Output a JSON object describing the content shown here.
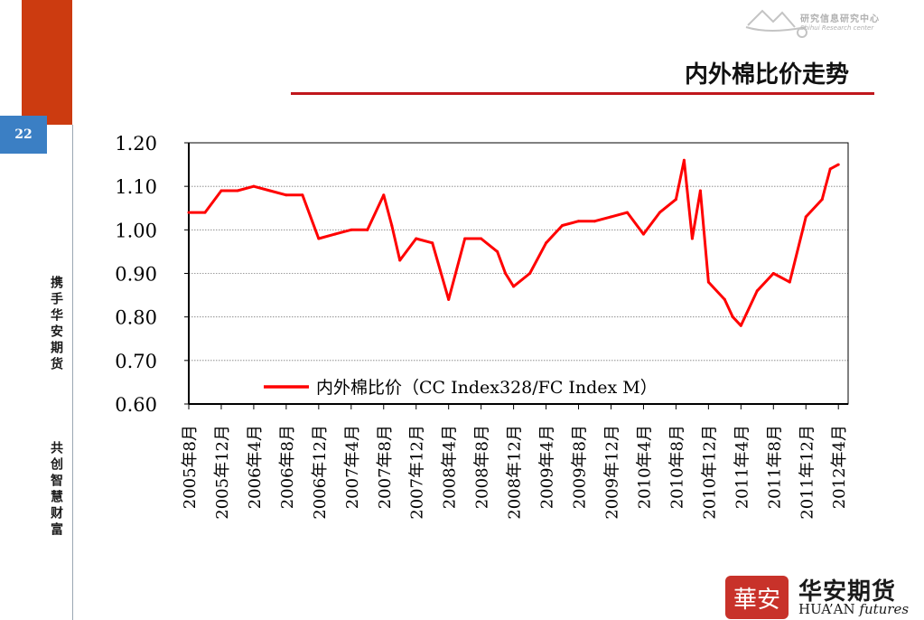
{
  "slide": {
    "page_number": "22",
    "title": "内外棉比价走势",
    "side_text_1": "携手华安期货",
    "side_text_2": "共创智慧财富"
  },
  "brand": {
    "top_logo_cn": "研究信息研究中心",
    "top_logo_en": "Shihui Research center",
    "bottom_seal_char": "華安",
    "bottom_logo_cn": "华安期货",
    "bottom_logo_en_main": "HUA’AN",
    "bottom_logo_en_script": "futures"
  },
  "colors": {
    "series": "#ff0000",
    "accent_red": "#c0161c",
    "badge_blue": "#3b7fc4",
    "side_red": "#cc3b10"
  },
  "chart_data": {
    "type": "line",
    "title": "",
    "xlabel": "",
    "ylabel": "",
    "ylim": [
      0.6,
      1.2
    ],
    "yticks": [
      "1.20",
      "1.10",
      "1.00",
      "0.90",
      "0.80",
      "0.70",
      "0.60"
    ],
    "xticks": [
      "2005年8月",
      "2005年12月",
      "2006年4月",
      "2006年8月",
      "2006年12月",
      "2007年4月",
      "2007年8月",
      "2007年12月",
      "2008年4月",
      "2008年8月",
      "2008年12月",
      "2009年4月",
      "2009年8月",
      "2009年12月",
      "2010年4月",
      "2010年8月",
      "2010年12月",
      "2011年4月",
      "2011年8月",
      "2011年12月",
      "2012年4月"
    ],
    "grid": true,
    "legend_position": "inside-bottom",
    "series": [
      {
        "name": "内外棉比价（CC Index328/FC Index M）",
        "x": [
          "2005年8月",
          "2005年10月",
          "2005年12月",
          "2006年2月",
          "2006年4月",
          "2006年6月",
          "2006年8月",
          "2006年10月",
          "2006年12月",
          "2007年2月",
          "2007年4月",
          "2007年6月",
          "2007年8月",
          "2007年9月",
          "2007年10月",
          "2007年12月",
          "2008年2月",
          "2008年4月",
          "2008年6月",
          "2008年8月",
          "2008年10月",
          "2008年11月",
          "2008年12月",
          "2009年2月",
          "2009年4月",
          "2009年6月",
          "2009年8月",
          "2009年10月",
          "2009年12月",
          "2010年2月",
          "2010年4月",
          "2010年6月",
          "2010年8月",
          "2010年9月",
          "2010年10月",
          "2010年11月",
          "2010年12月",
          "2011年2月",
          "2011年3月",
          "2011年4月",
          "2011年6月",
          "2011年8月",
          "2011年10月",
          "2011年12月",
          "2012年2月",
          "2012年3月",
          "2012年4月"
        ],
        "values": [
          1.04,
          1.04,
          1.09,
          1.09,
          1.1,
          1.09,
          1.08,
          1.08,
          0.98,
          0.99,
          1.0,
          1.0,
          1.08,
          1.01,
          0.93,
          0.98,
          0.97,
          0.84,
          0.98,
          0.98,
          0.95,
          0.9,
          0.87,
          0.9,
          0.97,
          1.01,
          1.02,
          1.02,
          1.03,
          1.04,
          0.99,
          1.04,
          1.07,
          1.16,
          0.98,
          1.09,
          0.88,
          0.84,
          0.8,
          0.78,
          0.86,
          0.9,
          0.88,
          1.03,
          1.07,
          1.14,
          1.15
        ]
      }
    ]
  }
}
